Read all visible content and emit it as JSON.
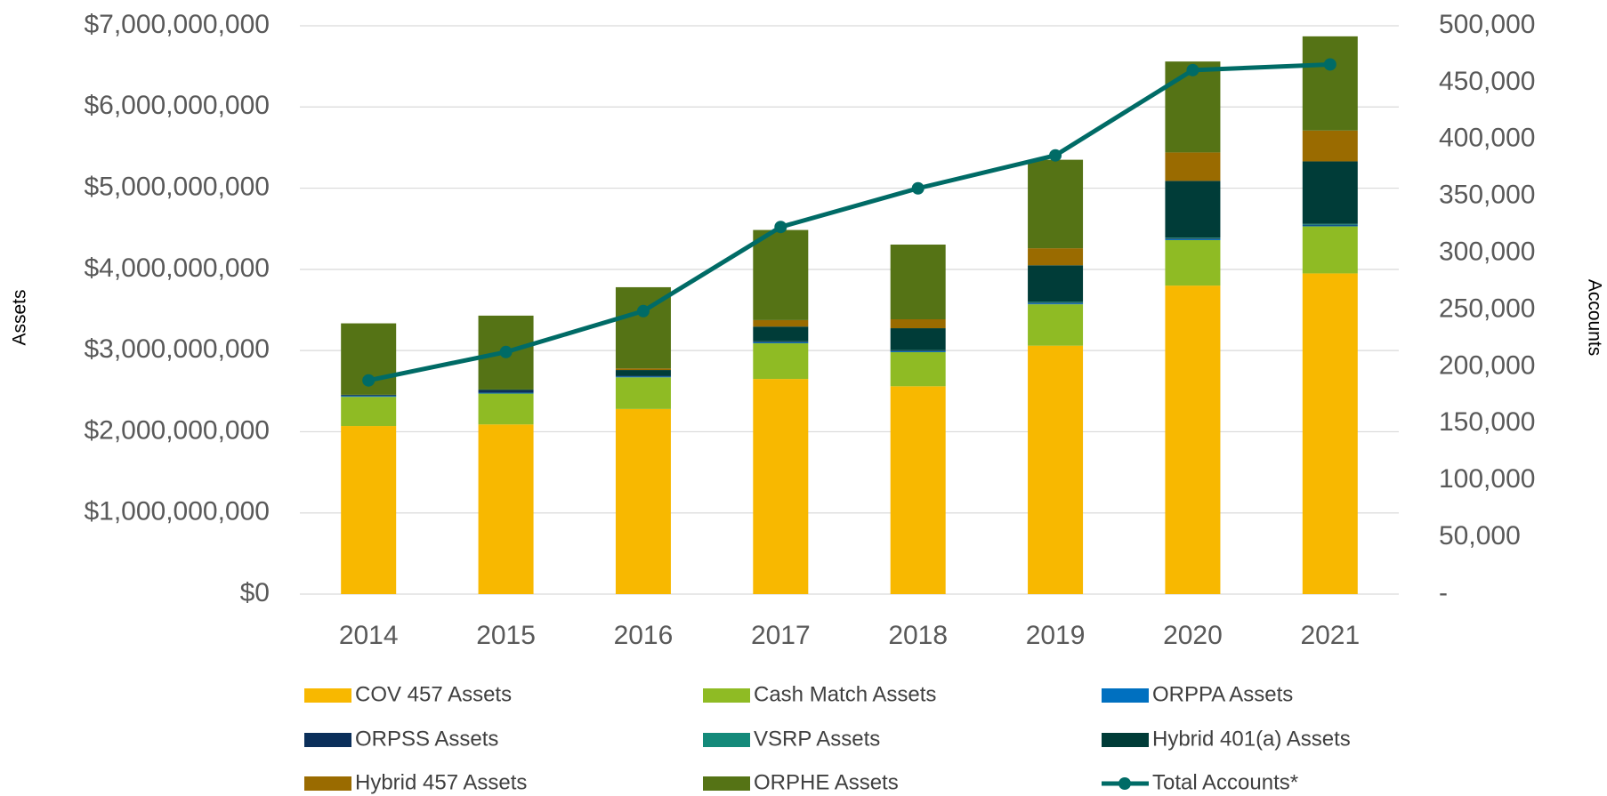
{
  "chart_data": {
    "type": "bar",
    "stacked": true,
    "categories": [
      "2014",
      "2015",
      "2016",
      "2017",
      "2018",
      "2019",
      "2020",
      "2021"
    ],
    "y_label": "Assets",
    "y2_label": "Accounts",
    "ylim": [
      0,
      7000000000
    ],
    "yticks": [
      {
        "value": 0,
        "label": "$0"
      },
      {
        "value": 1000000000,
        "label": "$1,000,000,000"
      },
      {
        "value": 2000000000,
        "label": "$2,000,000,000"
      },
      {
        "value": 3000000000,
        "label": "$3,000,000,000"
      },
      {
        "value": 4000000000,
        "label": "$4,000,000,000"
      },
      {
        "value": 5000000000,
        "label": "$5,000,000,000"
      },
      {
        "value": 6000000000,
        "label": "$6,000,000,000"
      },
      {
        "value": 7000000000,
        "label": "$7,000,000,000"
      }
    ],
    "y2lim": [
      0,
      500000
    ],
    "y2ticks": [
      {
        "value": 0,
        "label": "-"
      },
      {
        "value": 50000,
        "label": "50,000"
      },
      {
        "value": 100000,
        "label": "100,000"
      },
      {
        "value": 150000,
        "label": "150,000"
      },
      {
        "value": 200000,
        "label": "200,000"
      },
      {
        "value": 250000,
        "label": "250,000"
      },
      {
        "value": 300000,
        "label": "300,000"
      },
      {
        "value": 350000,
        "label": "350,000"
      },
      {
        "value": 400000,
        "label": "400,000"
      },
      {
        "value": 450000,
        "label": "450,000"
      },
      {
        "value": 500000,
        "label": "500,000"
      }
    ],
    "grid": true,
    "legend": "bottom",
    "series": [
      {
        "name": "COV 457 Assets",
        "color": "#f8b800",
        "values": [
          2070000000,
          2090000000,
          2280000000,
          2650000000,
          2560000000,
          3060000000,
          3800000000,
          3950000000
        ]
      },
      {
        "name": "Cash Match Assets",
        "color": "#8fbb24",
        "values": [
          360000000,
          380000000,
          390000000,
          440000000,
          420000000,
          510000000,
          560000000,
          580000000
        ]
      },
      {
        "name": "ORPPA Assets",
        "color": "#0070c0",
        "values": [
          10000000,
          10000000,
          10000000,
          10000000,
          10000000,
          10000000,
          10000000,
          10000000
        ]
      },
      {
        "name": "ORPSS Assets",
        "color": "#0b2f5a",
        "values": [
          10000000,
          30000000,
          10000000,
          10000000,
          10000000,
          10000000,
          10000000,
          10000000
        ]
      },
      {
        "name": "VSRP Assets",
        "color": "#148a7a",
        "values": [
          0,
          0,
          0,
          5000000,
          5000000,
          10000000,
          10000000,
          10000000
        ]
      },
      {
        "name": "Hybrid 401(a) Assets",
        "color": "#003c38",
        "values": [
          5000000,
          10000000,
          70000000,
          180000000,
          270000000,
          450000000,
          700000000,
          770000000
        ]
      },
      {
        "name": "Hybrid 457 Assets",
        "color": "#9a6b00",
        "values": [
          0,
          0,
          20000000,
          80000000,
          110000000,
          210000000,
          350000000,
          380000000
        ]
      },
      {
        "name": "ORPHE Assets",
        "color": "#557315",
        "values": [
          880000000,
          910000000,
          1000000000,
          1110000000,
          920000000,
          1090000000,
          1120000000,
          1160000000
        ]
      },
      {
        "name": "Total Accounts*",
        "color": "#006b66",
        "type": "line",
        "axis": "y2",
        "values": [
          188000,
          213000,
          249000,
          323000,
          357000,
          386000,
          461000,
          466000
        ]
      }
    ]
  }
}
